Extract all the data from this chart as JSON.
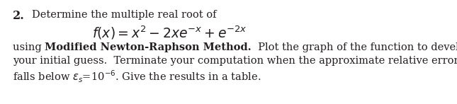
{
  "number": "2.",
  "line1": "Determine the multiple real root of",
  "formula_latex": "$f(x) = x^2 - 2xe^{-x} + e^{-2x}$",
  "using_text": "using ",
  "bold_text": "Modified Newton-Raphson Method.",
  "rest_line3": "  Plot the graph of the function to develop",
  "line4": "your initial guess.  Terminate your computation when the approximate relative error",
  "line5": "falls below $\\varepsilon_s$=10$^{-6}$. Give the results in a table.",
  "bg_color": "#ffffff",
  "text_color": "#231f20",
  "font_size_body": 10.5,
  "font_size_formula": 13.5,
  "font_size_number": 11.5
}
